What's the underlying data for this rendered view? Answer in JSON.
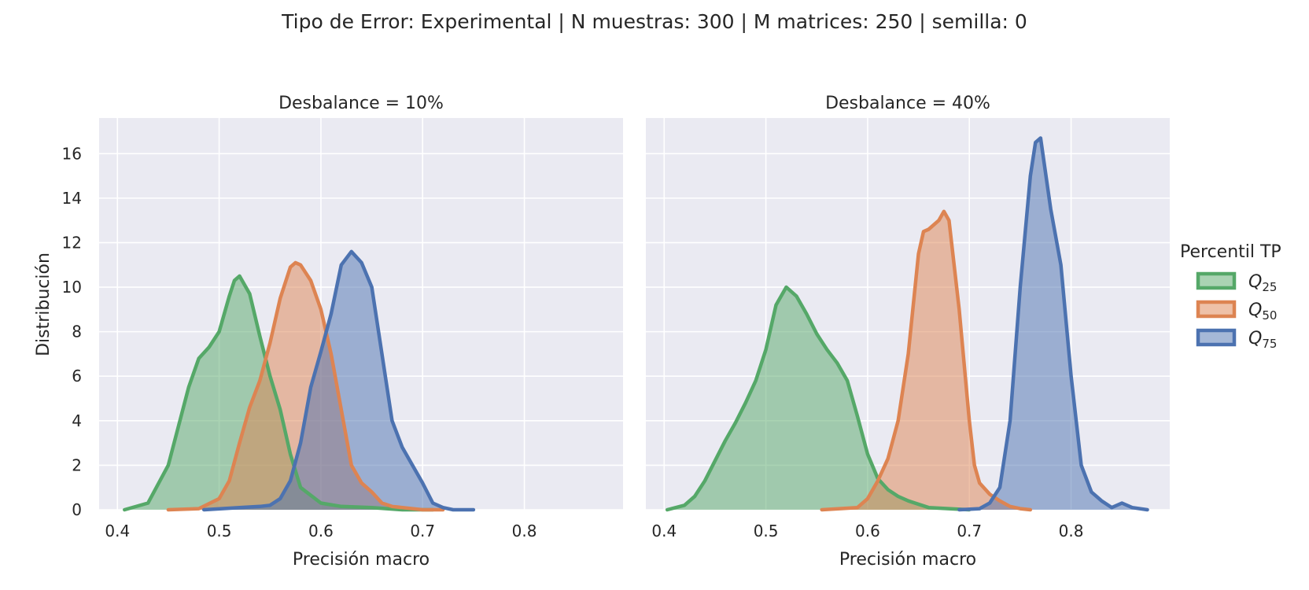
{
  "chart_data": {
    "type": "area",
    "title": "Tipo de Error: Experimental | N muestras: 300 | M matrices: 250 | semilla: 0",
    "ylabel": "Distribución",
    "xlabel": "Precisión macro",
    "xlim": [
      0.382,
      0.897
    ],
    "ylim": [
      0,
      17.6
    ],
    "xticks": [
      0.4,
      0.5,
      0.6,
      0.7,
      0.8
    ],
    "xtick_labels": [
      "0.4",
      "0.5",
      "0.6",
      "0.7",
      "0.8"
    ],
    "yticks": [
      0,
      2,
      4,
      6,
      8,
      10,
      12,
      14,
      16
    ],
    "ytick_labels": [
      "0",
      "2",
      "4",
      "6",
      "8",
      "10",
      "12",
      "14",
      "16"
    ],
    "grid": true,
    "legend": {
      "title": "Percentil TP",
      "placement": "right",
      "entries": [
        {
          "label": "Q",
          "sub": "25",
          "color": "#55a868"
        },
        {
          "label": "Q",
          "sub": "50",
          "color": "#dd8452"
        },
        {
          "label": "Q",
          "sub": "75",
          "color": "#4c72b0"
        }
      ]
    },
    "panels": [
      {
        "title": "Desbalance = 10%",
        "series": [
          {
            "name": "Q25",
            "color": "#55a868",
            "x": [
              0.407,
              0.43,
              0.45,
              0.47,
              0.48,
              0.49,
              0.5,
              0.51,
              0.515,
              0.52,
              0.53,
              0.54,
              0.55,
              0.56,
              0.57,
              0.58,
              0.6,
              0.62,
              0.65,
              0.68,
              0.71
            ],
            "y": [
              0,
              0.3,
              2.0,
              5.5,
              6.8,
              7.3,
              8.0,
              9.6,
              10.3,
              10.5,
              9.7,
              7.8,
              6.0,
              4.5,
              2.5,
              1.0,
              0.3,
              0.15,
              0.1,
              0,
              0
            ]
          },
          {
            "name": "Q50",
            "color": "#dd8452",
            "x": [
              0.45,
              0.48,
              0.5,
              0.51,
              0.52,
              0.53,
              0.54,
              0.55,
              0.56,
              0.57,
              0.575,
              0.58,
              0.59,
              0.6,
              0.61,
              0.62,
              0.63,
              0.64,
              0.65,
              0.66,
              0.67,
              0.68,
              0.7,
              0.72
            ],
            "y": [
              0,
              0.05,
              0.5,
              1.3,
              3.0,
              4.6,
              5.8,
              7.5,
              9.5,
              10.9,
              11.1,
              11.0,
              10.3,
              9.0,
              7.0,
              4.5,
              2.0,
              1.2,
              0.8,
              0.3,
              0.15,
              0.1,
              0,
              0
            ]
          },
          {
            "name": "Q75",
            "color": "#4c72b0",
            "x": [
              0.485,
              0.52,
              0.54,
              0.55,
              0.56,
              0.57,
              0.58,
              0.59,
              0.6,
              0.61,
              0.62,
              0.63,
              0.64,
              0.65,
              0.66,
              0.67,
              0.68,
              0.69,
              0.7,
              0.71,
              0.72,
              0.73,
              0.75
            ],
            "y": [
              0,
              0.1,
              0.15,
              0.2,
              0.5,
              1.3,
              3.0,
              5.5,
              7.1,
              8.8,
              11.0,
              11.6,
              11.1,
              10.0,
              7.0,
              4.0,
              2.8,
              2.0,
              1.2,
              0.3,
              0.1,
              0,
              0
            ]
          }
        ]
      },
      {
        "title": "Desbalance = 40%",
        "series": [
          {
            "name": "Q25",
            "color": "#55a868",
            "x": [
              0.403,
              0.42,
              0.43,
              0.44,
              0.45,
              0.46,
              0.47,
              0.48,
              0.49,
              0.5,
              0.51,
              0.52,
              0.53,
              0.54,
              0.55,
              0.56,
              0.57,
              0.58,
              0.59,
              0.6,
              0.61,
              0.62,
              0.63,
              0.64,
              0.66,
              0.68,
              0.7
            ],
            "y": [
              0,
              0.2,
              0.6,
              1.3,
              2.2,
              3.1,
              3.9,
              4.8,
              5.8,
              7.2,
              9.2,
              10.0,
              9.6,
              8.8,
              7.9,
              7.2,
              6.6,
              5.8,
              4.2,
              2.5,
              1.4,
              0.9,
              0.6,
              0.4,
              0.1,
              0.05,
              0
            ]
          },
          {
            "name": "Q50",
            "color": "#dd8452",
            "x": [
              0.555,
              0.59,
              0.6,
              0.61,
              0.62,
              0.63,
              0.64,
              0.65,
              0.655,
              0.66,
              0.67,
              0.675,
              0.68,
              0.69,
              0.7,
              0.705,
              0.71,
              0.72,
              0.73,
              0.74,
              0.75,
              0.76
            ],
            "y": [
              0,
              0.1,
              0.5,
              1.3,
              2.3,
              4.0,
              7.0,
              11.5,
              12.5,
              12.6,
              13.0,
              13.4,
              13.0,
              9.0,
              4.0,
              2.0,
              1.2,
              0.7,
              0.4,
              0.15,
              0.05,
              0
            ]
          },
          {
            "name": "Q75",
            "color": "#4c72b0",
            "x": [
              0.69,
              0.71,
              0.72,
              0.73,
              0.74,
              0.75,
              0.76,
              0.765,
              0.77,
              0.78,
              0.79,
              0.8,
              0.81,
              0.82,
              0.83,
              0.84,
              0.85,
              0.86,
              0.875
            ],
            "y": [
              0,
              0.05,
              0.3,
              1.0,
              4.0,
              10.0,
              15.0,
              16.5,
              16.7,
              13.5,
              11.0,
              6.0,
              2.0,
              0.8,
              0.4,
              0.1,
              0.3,
              0.1,
              0
            ]
          }
        ]
      }
    ]
  }
}
